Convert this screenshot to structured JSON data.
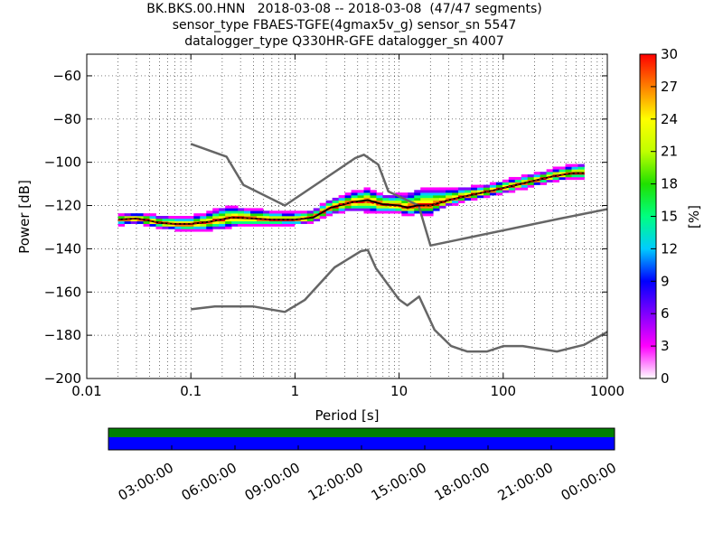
{
  "header": {
    "title_line1": "BK.BKS.00.HNN   2018-03-08 -- 2018-03-08  (47/47 segments)",
    "title_line2": "sensor_type FBAES-TGFE(4gmax5v_g) sensor_sn 5547",
    "title_line3": "datalogger_type Q330HR-GFE datalogger_sn 4007"
  },
  "colors": {
    "noise_model": "#666666",
    "mode_line": "#000000",
    "mean_line": "#e00000",
    "coverage_data": "#008000",
    "coverage_gaps": "#0000ff"
  },
  "chart_data": [
    {
      "type": "heatmap",
      "title": "",
      "xlabel": "Period [s]",
      "ylabel": "Power [dB]",
      "x_scale": "log",
      "xlim": [
        0.01,
        1000
      ],
      "ylim": [
        -200,
        -50
      ],
      "grid": true,
      "x_ticks": [
        {
          "value": 0.01,
          "label": "0.01"
        },
        {
          "value": 0.1,
          "label": "0.1"
        },
        {
          "value": 1,
          "label": "1"
        },
        {
          "value": 10,
          "label": "10"
        },
        {
          "value": 100,
          "label": "100"
        },
        {
          "value": 1000,
          "label": "1000"
        }
      ],
      "y_ticks": [
        {
          "value": -60,
          "label": "−60"
        },
        {
          "value": -80,
          "label": "−80"
        },
        {
          "value": -100,
          "label": "−100"
        },
        {
          "value": -120,
          "label": "−120"
        },
        {
          "value": -140,
          "label": "−140"
        },
        {
          "value": -160,
          "label": "−160"
        },
        {
          "value": -180,
          "label": "−180"
        },
        {
          "value": -200,
          "label": "−200"
        }
      ],
      "colorbar": {
        "label": "[%]",
        "range": [
          0,
          30
        ],
        "ticks": [
          {
            "value": 0,
            "label": "0"
          },
          {
            "value": 3,
            "label": "3"
          },
          {
            "value": 6,
            "label": "6"
          },
          {
            "value": 9,
            "label": "9"
          },
          {
            "value": 12,
            "label": "12"
          },
          {
            "value": 15,
            "label": "15"
          },
          {
            "value": 18,
            "label": "18"
          },
          {
            "value": 21,
            "label": "21"
          },
          {
            "value": 24,
            "label": "24"
          },
          {
            "value": 27,
            "label": "27"
          },
          {
            "value": 30,
            "label": "30"
          }
        ]
      },
      "series": [
        {
          "role": "high-noise-model",
          "points": [
            [
              0.1,
              -91.5
            ],
            [
              0.22,
              -97.4
            ],
            [
              0.32,
              -110.5
            ],
            [
              0.8,
              -120
            ],
            [
              3.8,
              -98
            ],
            [
              4.6,
              -96.5
            ],
            [
              6.3,
              -101
            ],
            [
              7.9,
              -113.5
            ],
            [
              15.4,
              -120
            ],
            [
              20,
              -138.5
            ],
            [
              354.8,
              -126
            ],
            [
              10000,
              -112
            ]
          ]
        },
        {
          "role": "low-noise-model",
          "points": [
            [
              0.1,
              -168
            ],
            [
              0.17,
              -166.7
            ],
            [
              0.4,
              -166.7
            ],
            [
              0.8,
              -169.2
            ],
            [
              1.24,
              -163.7
            ],
            [
              2.4,
              -148.6
            ],
            [
              4.3,
              -141.1
            ],
            [
              5,
              -140.5
            ],
            [
              6,
              -149
            ],
            [
              10,
              -163.5
            ],
            [
              12,
              -166.2
            ],
            [
              15.6,
              -162.1
            ],
            [
              21.9,
              -177.5
            ],
            [
              31.6,
              -185
            ],
            [
              45,
              -187.5
            ],
            [
              70,
              -187.5
            ],
            [
              101,
              -185
            ],
            [
              154,
              -185
            ],
            [
              328,
              -187.5
            ],
            [
              600,
              -184.4
            ],
            [
              10000,
              -151.5
            ]
          ]
        },
        {
          "role": "mode",
          "points": [
            [
              0.02,
              -126.5
            ],
            [
              0.03,
              -126
            ],
            [
              0.04,
              -127
            ],
            [
              0.05,
              -128
            ],
            [
              0.07,
              -128.5
            ],
            [
              0.1,
              -128.5
            ],
            [
              0.15,
              -127.5
            ],
            [
              0.25,
              -125.5
            ],
            [
              0.4,
              -126
            ],
            [
              0.6,
              -126.5
            ],
            [
              1,
              -126.5
            ],
            [
              1.5,
              -125.5
            ],
            [
              2.2,
              -121
            ],
            [
              3.5,
              -118.5
            ],
            [
              5,
              -117.5
            ],
            [
              7,
              -119.5
            ],
            [
              10,
              -120
            ],
            [
              12,
              -121
            ],
            [
              15,
              -120
            ],
            [
              20,
              -120
            ],
            [
              30,
              -117.5
            ],
            [
              50,
              -115
            ],
            [
              80,
              -113
            ],
            [
              120,
              -111
            ],
            [
              200,
              -108.5
            ],
            [
              300,
              -106.5
            ],
            [
              400,
              -105.5
            ],
            [
              500,
              -105
            ],
            [
              600,
              -105
            ]
          ]
        },
        {
          "role": "mean",
          "points": [
            [
              0.02,
              -126.5
            ],
            [
              0.03,
              -126
            ],
            [
              0.04,
              -127
            ],
            [
              0.05,
              -128
            ],
            [
              0.07,
              -128.5
            ],
            [
              0.1,
              -128.5
            ],
            [
              0.15,
              -127.5
            ],
            [
              0.25,
              -125.5
            ],
            [
              0.4,
              -126
            ],
            [
              0.6,
              -126.5
            ],
            [
              1,
              -126.5
            ],
            [
              1.5,
              -125
            ],
            [
              2.2,
              -120.5
            ],
            [
              3.5,
              -118.5
            ],
            [
              5,
              -118.5
            ],
            [
              7,
              -120
            ],
            [
              10,
              -120.5
            ],
            [
              12,
              -121.5
            ],
            [
              15,
              -120.5
            ],
            [
              20,
              -120
            ],
            [
              30,
              -117.5
            ],
            [
              50,
              -115
            ],
            [
              80,
              -113
            ],
            [
              120,
              -111
            ],
            [
              200,
              -108.5
            ],
            [
              300,
              -106.5
            ],
            [
              400,
              -105.5
            ],
            [
              500,
              -105
            ],
            [
              600,
              -105
            ]
          ]
        }
      ],
      "spread": [
        [
          0.02,
          -2,
          2
        ],
        [
          0.05,
          -2,
          3
        ],
        [
          0.1,
          -3,
          3
        ],
        [
          0.2,
          -4,
          5
        ],
        [
          0.4,
          -3,
          4
        ],
        [
          0.8,
          -2,
          3
        ],
        [
          1.5,
          -2,
          3
        ],
        [
          3,
          -3,
          4
        ],
        [
          5,
          -5,
          5
        ],
        [
          8,
          -3,
          4
        ],
        [
          12,
          -3,
          6
        ],
        [
          18,
          -4,
          8
        ],
        [
          30,
          -2,
          5
        ],
        [
          60,
          -2,
          3
        ],
        [
          120,
          -2,
          3
        ],
        [
          300,
          -2,
          3
        ],
        [
          600,
          -2,
          4
        ]
      ]
    },
    {
      "type": "bar",
      "title": "",
      "xlabel": "",
      "ylabel": "",
      "role": "data-coverage",
      "x_tick_labels": [
        "03:00:00",
        "06:00:00",
        "09:00:00",
        "12:00:00",
        "15:00:00",
        "18:00:00",
        "21:00:00",
        "00:00:00"
      ],
      "data_coverage_fraction": 1.0,
      "segment_coverage_fraction": 1.0
    }
  ]
}
